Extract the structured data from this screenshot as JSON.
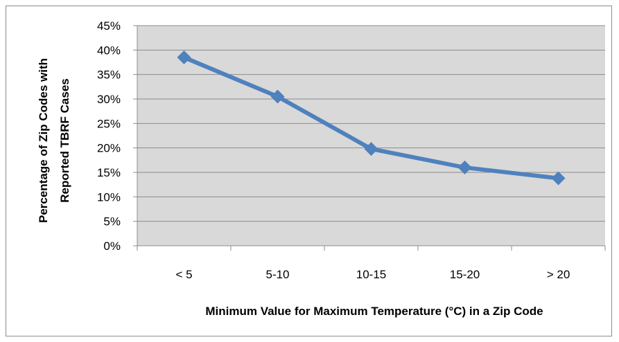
{
  "chart_data": {
    "type": "line",
    "title": "",
    "xlabel": "Minimum Value for Maximum Temperature (°C) in a Zip Code",
    "ylabel_line1": "Percentage of Zip Codes with",
    "ylabel_line2": "Reported TBRF Cases",
    "categories": [
      "< 5",
      "5-10",
      "10-15",
      "15-20",
      "> 20"
    ],
    "series": [
      {
        "values": [
          38.5,
          30.5,
          19.8,
          16.0,
          13.8
        ]
      }
    ],
    "y_ticks": [
      "0%",
      "5%",
      "10%",
      "15%",
      "20%",
      "25%",
      "30%",
      "35%",
      "40%",
      "45%"
    ],
    "ylim": [
      0,
      45
    ],
    "y_unit": "%",
    "grid": true,
    "legend": "none",
    "colors": {
      "line": "#4f81bd",
      "plot_background": "#d9d9d9",
      "gridline": "#8c8c8c",
      "frame": "#8c8c8c"
    }
  }
}
